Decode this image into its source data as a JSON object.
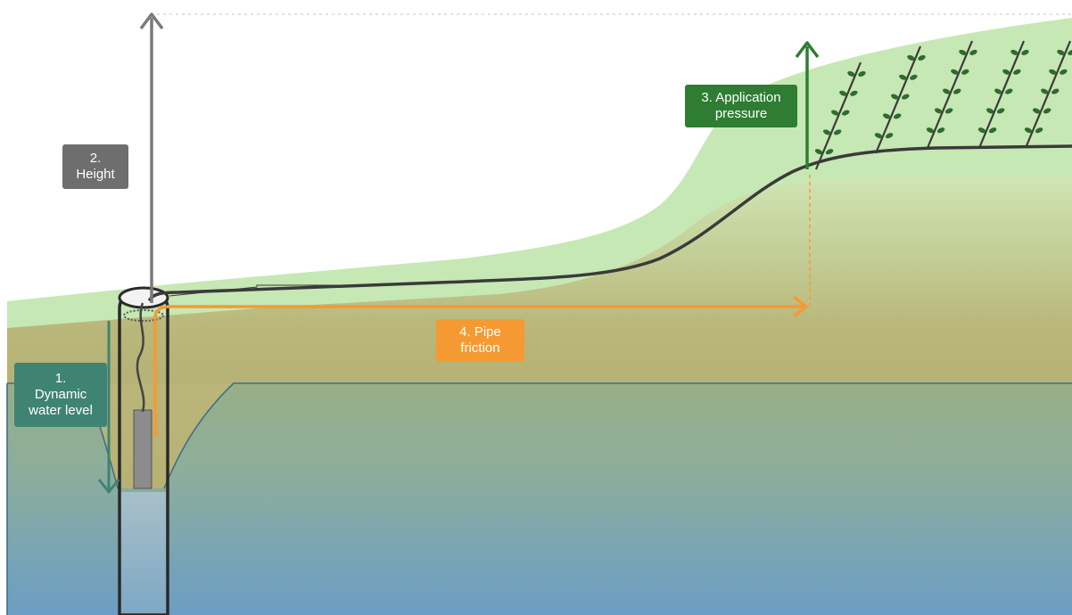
{
  "colors": {
    "height": "#6e6e6e",
    "dynamic_water_level": "#3f8374",
    "application_pressure": "#2e7d32",
    "pipe_friction": "#f59a33",
    "pipe": "#3a3a3a",
    "ground_light": "#c4e6b3",
    "water_top": "#8fb3a0",
    "water_bottom": "#6b9fc4"
  },
  "labels": {
    "height": {
      "number": "2.",
      "text": "Height"
    },
    "dynamic_water_level": {
      "number": "1.",
      "line1": "Dynamic",
      "line2": "water level"
    },
    "application_pressure": {
      "line1": "3. Application",
      "line2": "pressure"
    },
    "pipe_friction": {
      "line1": "4. Pipe",
      "line2": "friction"
    }
  },
  "icons": {
    "plant": "plant-icon",
    "pump": "pump-icon",
    "well": "well-casing-icon"
  }
}
